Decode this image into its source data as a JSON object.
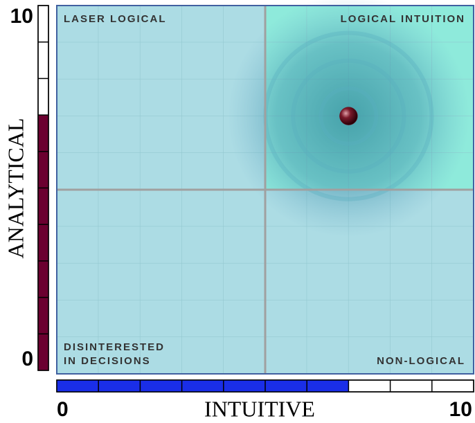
{
  "chart_data": {
    "type": "scatter",
    "x_label": "INTUITIVE",
    "y_label": "ANALYTICAL",
    "annotations": [
      "LASER LOGICAL",
      "LOGICAL INTUITION",
      "DISINTERESTED",
      "IN DECISIONS",
      "NON-LOGICAL"
    ],
    "x": [
      7
    ],
    "values": [
      7
    ],
    "color": "#6b1a2a",
    "x_gauge_color": "#1a2ee8",
    "y_gauge_color": "#6b0030",
    "xlim": [
      0,
      10
    ],
    "ylim": [
      0,
      10
    ],
    "xticks": [
      0,
      10
    ],
    "yticks": [
      0,
      10
    ]
  }
}
